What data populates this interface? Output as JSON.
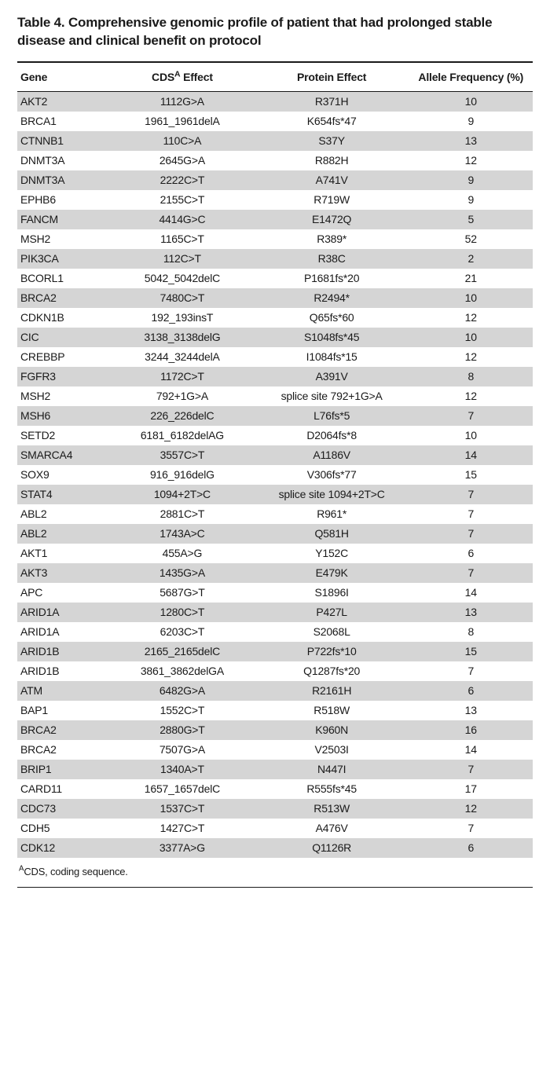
{
  "title_prefix": "Table 4. Comprehensive genomic profile of patient that had prolonged stable disease and clinical benefit on protocol",
  "columns": {
    "gene": "Gene",
    "cds_prefix": "CDS",
    "cds_sup": "A",
    "cds_suffix": " Effect",
    "protein": "Protein Effect",
    "freq": "Allele Frequency (%)"
  },
  "footnote_sup": "A",
  "footnote_text": "CDS, coding sequence.",
  "rows": [
    {
      "gene": "AKT2",
      "cds": "1112G>A",
      "protein": "R371H",
      "freq": "10"
    },
    {
      "gene": "BRCA1",
      "cds": "1961_1961delA",
      "protein": "K654fs*47",
      "freq": "9"
    },
    {
      "gene": "CTNNB1",
      "cds": "110C>A",
      "protein": "S37Y",
      "freq": "13"
    },
    {
      "gene": "DNMT3A",
      "cds": "2645G>A",
      "protein": "R882H",
      "freq": "12"
    },
    {
      "gene": "DNMT3A",
      "cds": "2222C>T",
      "protein": "A741V",
      "freq": "9"
    },
    {
      "gene": "EPHB6",
      "cds": "2155C>T",
      "protein": "R719W",
      "freq": "9"
    },
    {
      "gene": "FANCM",
      "cds": "4414G>C",
      "protein": "E1472Q",
      "freq": "5"
    },
    {
      "gene": "MSH2",
      "cds": "1165C>T",
      "protein": "R389*",
      "freq": "52"
    },
    {
      "gene": "PIK3CA",
      "cds": "112C>T",
      "protein": "R38C",
      "freq": "2"
    },
    {
      "gene": "BCORL1",
      "cds": "5042_5042delC",
      "protein": "P1681fs*20",
      "freq": "21"
    },
    {
      "gene": "BRCA2",
      "cds": "7480C>T",
      "protein": "R2494*",
      "freq": "10"
    },
    {
      "gene": "CDKN1B",
      "cds": "192_193insT",
      "protein": "Q65fs*60",
      "freq": "12"
    },
    {
      "gene": "CIC",
      "cds": "3138_3138delG",
      "protein": "S1048fs*45",
      "freq": "10"
    },
    {
      "gene": "CREBBP",
      "cds": "3244_3244delA",
      "protein": "I1084fs*15",
      "freq": "12"
    },
    {
      "gene": "FGFR3",
      "cds": "1172C>T",
      "protein": "A391V",
      "freq": "8"
    },
    {
      "gene": "MSH2",
      "cds": "792+1G>A",
      "protein": "splice site 792+1G>A",
      "freq": "12"
    },
    {
      "gene": "MSH6",
      "cds": "226_226delC",
      "protein": "L76fs*5",
      "freq": "7"
    },
    {
      "gene": "SETD2",
      "cds": "6181_6182delAG",
      "protein": "D2064fs*8",
      "freq": "10"
    },
    {
      "gene": "SMARCA4",
      "cds": "3557C>T",
      "protein": "A1186V",
      "freq": "14"
    },
    {
      "gene": "SOX9",
      "cds": "916_916delG",
      "protein": "V306fs*77",
      "freq": "15"
    },
    {
      "gene": "STAT4",
      "cds": "1094+2T>C",
      "protein": "splice site 1094+2T>C",
      "freq": "7"
    },
    {
      "gene": "ABL2",
      "cds": "2881C>T",
      "protein": "R961*",
      "freq": "7"
    },
    {
      "gene": "ABL2",
      "cds": "1743A>C",
      "protein": "Q581H",
      "freq": "7"
    },
    {
      "gene": "AKT1",
      "cds": "455A>G",
      "protein": "Y152C",
      "freq": "6"
    },
    {
      "gene": "AKT3",
      "cds": "1435G>A",
      "protein": "E479K",
      "freq": "7"
    },
    {
      "gene": "APC",
      "cds": "5687G>T",
      "protein": "S1896I",
      "freq": "14"
    },
    {
      "gene": "ARID1A",
      "cds": "1280C>T",
      "protein": "P427L",
      "freq": "13"
    },
    {
      "gene": "ARID1A",
      "cds": "6203C>T",
      "protein": "S2068L",
      "freq": "8"
    },
    {
      "gene": "ARID1B",
      "cds": "2165_2165delC",
      "protein": "P722fs*10",
      "freq": "15"
    },
    {
      "gene": "ARID1B",
      "cds": "3861_3862delGA",
      "protein": "Q1287fs*20",
      "freq": "7"
    },
    {
      "gene": "ATM",
      "cds": "6482G>A",
      "protein": "R2161H",
      "freq": "6"
    },
    {
      "gene": "BAP1",
      "cds": "1552C>T",
      "protein": "R518W",
      "freq": "13"
    },
    {
      "gene": "BRCA2",
      "cds": "2880G>T",
      "protein": "K960N",
      "freq": "16"
    },
    {
      "gene": "BRCA2",
      "cds": "7507G>A",
      "protein": "V2503I",
      "freq": "14"
    },
    {
      "gene": "BRIP1",
      "cds": "1340A>T",
      "protein": "N447I",
      "freq": "7"
    },
    {
      "gene": "CARD11",
      "cds": "1657_1657delC",
      "protein": "R555fs*45",
      "freq": "17"
    },
    {
      "gene": "CDC73",
      "cds": "1537C>T",
      "protein": "R513W",
      "freq": "12"
    },
    {
      "gene": "CDH5",
      "cds": "1427C>T",
      "protein": "A476V",
      "freq": "7"
    },
    {
      "gene": "CDK12",
      "cds": "3377A>G",
      "protein": "Q1126R",
      "freq": "6"
    }
  ],
  "colors": {
    "row_odd_bg": "#d5d5d5",
    "row_even_bg": "#ffffff",
    "text": "#1a1a1a",
    "border": "#1a1a1a"
  }
}
